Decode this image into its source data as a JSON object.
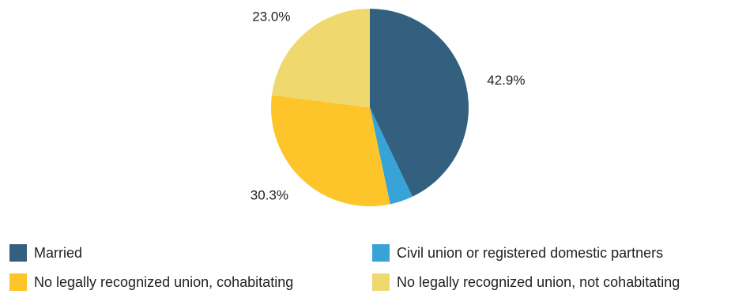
{
  "chart_data": {
    "type": "pie",
    "title": "",
    "slices": [
      {
        "label": "Married",
        "value": 42.9,
        "display": "42.9%",
        "color": "#33607f"
      },
      {
        "label": "Civil union or registered domestic partners",
        "value": 3.8,
        "display": "3.8%",
        "color": "#38a3d6"
      },
      {
        "label": "No legally recognized union, cohabitating",
        "value": 30.3,
        "display": "30.3%",
        "color": "#fec52a"
      },
      {
        "label": "No legally recognized union, not cohabitating",
        "value": 23.0,
        "display": "23.0%",
        "color": "#efd96e"
      }
    ],
    "start_angle": "12 o'clock",
    "direction": "clockwise",
    "legend_position": "bottom"
  }
}
